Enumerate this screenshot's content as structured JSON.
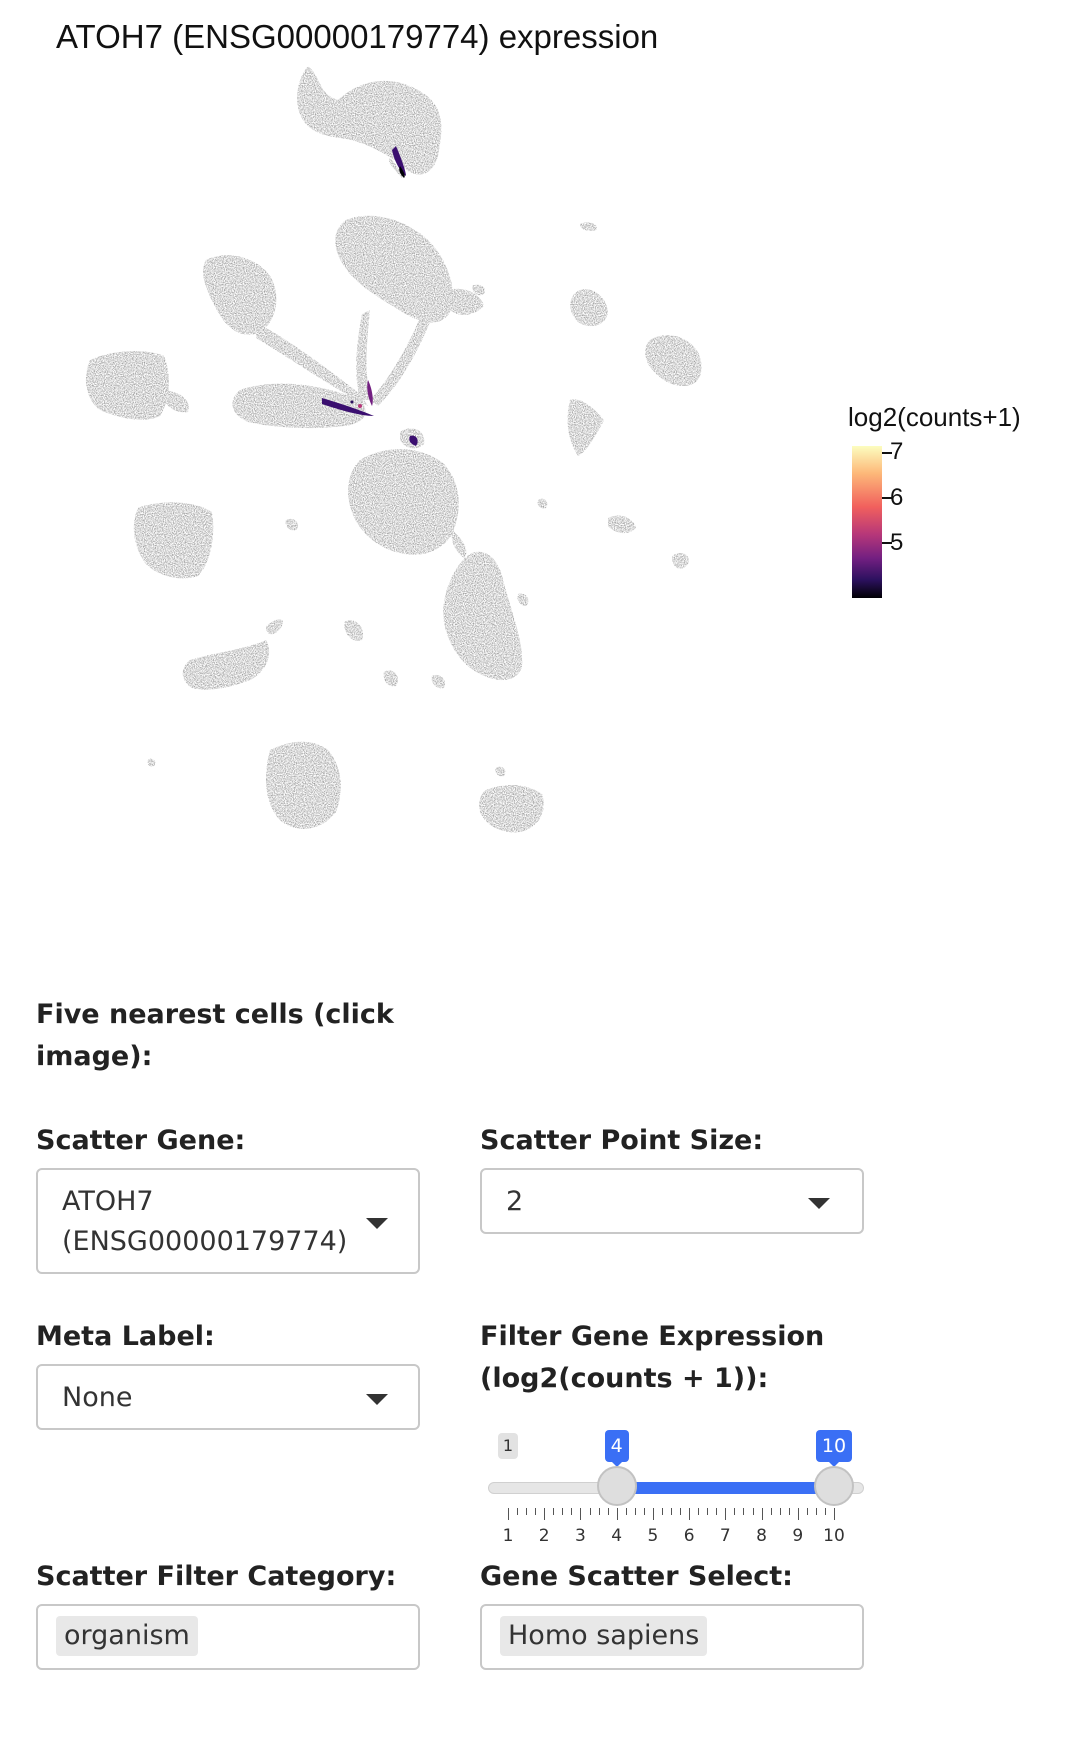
{
  "plot": {
    "title": "ATOH7 (ENSG00000179774) expression",
    "base_color": "#6e6e6e",
    "legend": {
      "title": "log2(counts+1)",
      "ticks": [
        "7",
        "6",
        "5"
      ],
      "colormap": "magma"
    }
  },
  "nearest": {
    "label": "Five nearest cells (click image):"
  },
  "scatter_gene": {
    "label": "Scatter Gene:",
    "value_line1": "ATOH7",
    "value_line2": "(ENSG00000179774)",
    "icon": "chevron-down-icon"
  },
  "point_size": {
    "label": "Scatter Point Size:",
    "value": "2",
    "icon": "chevron-down-icon"
  },
  "meta_label": {
    "label": "Meta Label:",
    "value": "None",
    "icon": "chevron-down-icon"
  },
  "filter_expr": {
    "label": "Filter Gene Expression (log2(counts + 1)):",
    "min": 1,
    "max": 10,
    "from": 4,
    "to": 10,
    "min_label": "1",
    "from_label": "4",
    "to_label": "10",
    "tick_labels": [
      "1",
      "2",
      "3",
      "4",
      "5",
      "6",
      "7",
      "8",
      "9",
      "10"
    ],
    "accent": "#3a6ff5"
  },
  "filter_category": {
    "label": "Scatter Filter Category:",
    "value": "organism"
  },
  "gene_scatter_select": {
    "label": "Gene Scatter Select:",
    "value": "Homo sapiens"
  }
}
